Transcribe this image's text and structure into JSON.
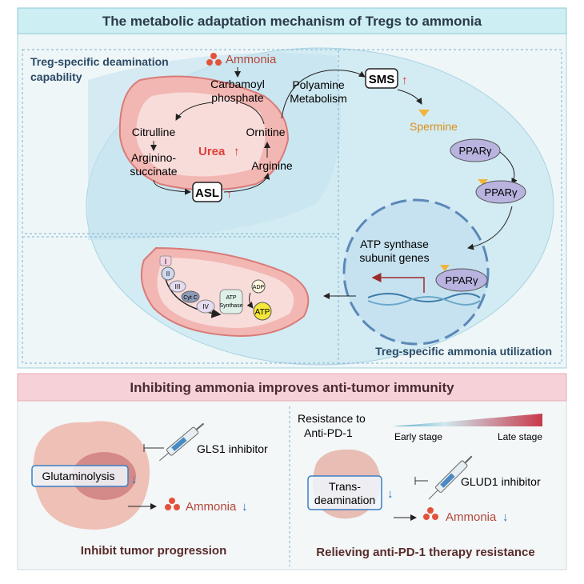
{
  "top_panel": {
    "title": "The metabolic adaptation mechanism of Tregs to ammonia",
    "deamination_label_1": "Treg-specific deamination",
    "deamination_label_2": "capability",
    "utilization_label": "Treg-specific ammonia utilization",
    "urea_cycle": {
      "ammonia": "Ammonia",
      "carbamoyl_1": "Carbamoyl",
      "carbamoyl_2": "phosphate",
      "citrulline": "Citrulline",
      "ornitine": "Ornitine",
      "urea": "Urea",
      "arginine": "Arginine",
      "argininosuccinate_1": "Arginino-",
      "argininosuccinate_2": "succinate",
      "asl": "ASL"
    },
    "polyamine": {
      "label_1": "Polyamine",
      "label_2": "Metabolism",
      "sms": "SMS",
      "spermine": "Spermine",
      "ppar": "PPARγ"
    },
    "nucleus": {
      "genes_1": "ATP synthase",
      "genes_2": "subunit genes"
    },
    "etc": {
      "c1": "I",
      "c2": "II",
      "c3": "III",
      "cytc": "Cyt C",
      "c4": "IV",
      "synthase_1": "ATP",
      "synthase_2": "Synthase",
      "adp": "ADP",
      "atp": "ATP"
    }
  },
  "bottom_panel": {
    "title": "Inhibiting ammonia improves anti-tumor immunity",
    "left": {
      "inhibitor": "GLS1 inhibitor",
      "process": "Glutaminolysis",
      "ammonia": "Ammonia",
      "caption": "Inhibit tumor progression"
    },
    "right": {
      "resistance_1": "Resistance to",
      "resistance_2": "Anti-PD-1",
      "early": "Early stage",
      "late": "Late stage",
      "inhibitor": "GLUD1 inhibitor",
      "process_1": "Trans-",
      "process_2": "deamination",
      "ammonia": "Ammonia",
      "caption": "Relieving anti-PD-1 therapy resistance"
    }
  },
  "colors": {
    "top_title_bg": "#cdeef3",
    "bottom_title_bg": "#f6d2d8",
    "cell": "#d3ebf3",
    "mito": "#f2b7b3",
    "up_arrow": "#e02a2a",
    "down_arrow": "#1f6fc4",
    "spermine": "#d9901a",
    "ppar": "#b9b3e0"
  }
}
